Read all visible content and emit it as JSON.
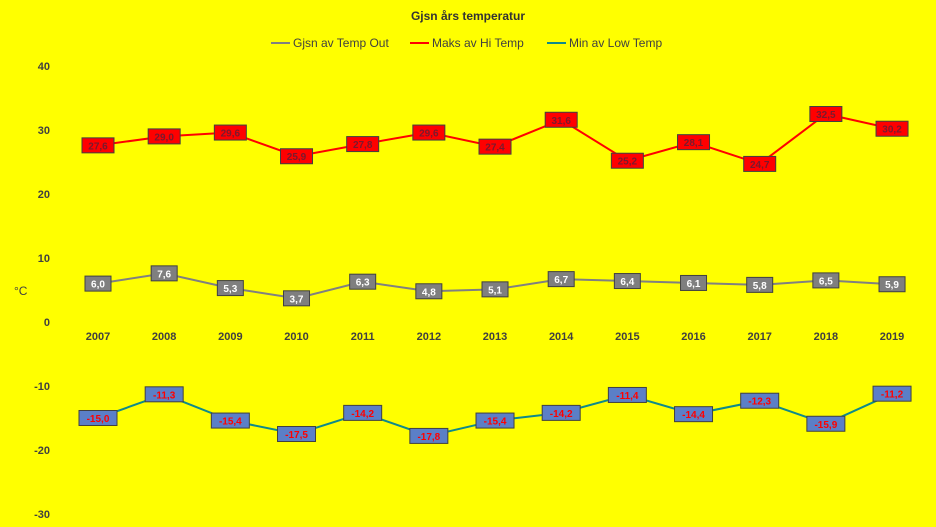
{
  "chart_data": {
    "type": "line",
    "title": "Gjsn års temperatur",
    "ylabel": "°C",
    "xlabel": "",
    "ylim": [
      -30,
      40
    ],
    "yticks": [
      -30,
      -20,
      -10,
      0,
      10,
      20,
      30,
      40
    ],
    "grid": false,
    "legend_position": "top",
    "categories": [
      "2007",
      "2008",
      "2009",
      "2010",
      "2011",
      "2012",
      "2013",
      "2014",
      "2015",
      "2016",
      "2017",
      "2018",
      "2019"
    ],
    "series": [
      {
        "name": "Gjsn av Temp Out",
        "color": "#808080",
        "label_bg": "#7f7f7f",
        "label_color": "#ffffff",
        "values": [
          6.0,
          7.6,
          5.3,
          3.7,
          6.3,
          4.8,
          5.1,
          6.7,
          6.4,
          6.1,
          5.8,
          6.5,
          5.9
        ],
        "labels": [
          "6,0",
          "7,6",
          "5,3",
          "3,7",
          "6,3",
          "4,8",
          "5,1",
          "6,7",
          "6,4",
          "6,1",
          "5,8",
          "6,5",
          "5,9"
        ]
      },
      {
        "name": "Maks av Hi Temp",
        "color": "#ff0000",
        "label_bg": "#ff0000",
        "label_color": "#7a1a2e",
        "values": [
          27.6,
          29.0,
          29.6,
          25.9,
          27.8,
          29.6,
          27.4,
          31.6,
          25.2,
          28.1,
          24.7,
          32.5,
          30.2
        ],
        "labels": [
          "27,6",
          "29,0",
          "29,6",
          "25,9",
          "27,8",
          "29,6",
          "27,4",
          "31,6",
          "25,2",
          "28,1",
          "24,7",
          "32,5",
          "30,2"
        ]
      },
      {
        "name": "Min av Low Temp",
        "color": "#0f8a8a",
        "label_bg": "#5b7fc7",
        "label_color": "#ff0000",
        "values": [
          -15.0,
          -11.3,
          -15.4,
          -17.5,
          -14.2,
          -17.8,
          -15.4,
          -14.2,
          -11.4,
          -14.4,
          -12.3,
          -15.9,
          -11.2
        ],
        "labels": [
          "-15,0",
          "-11,3",
          "-15,4",
          "-17,5",
          "-14,2",
          "-17,8",
          "-15,4",
          "-14,2",
          "-11,4",
          "-14,4",
          "-12,3",
          "-15,9",
          "-11,2"
        ]
      }
    ]
  }
}
